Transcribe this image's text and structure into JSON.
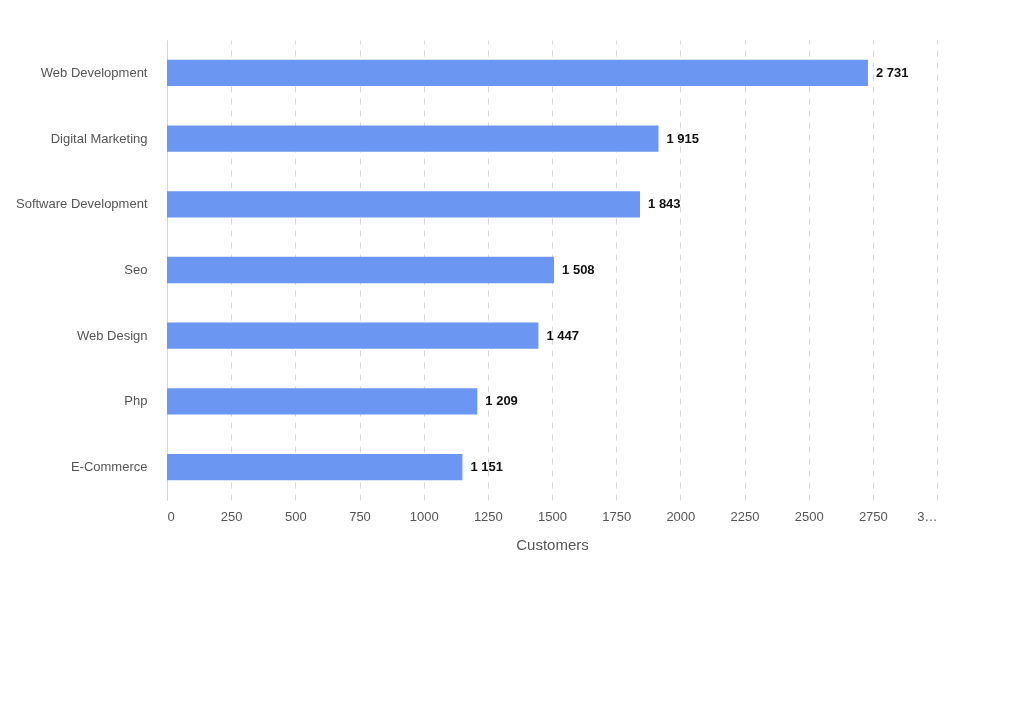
{
  "chart_data": {
    "type": "bar",
    "orientation": "horizontal",
    "xlabel": "Customers",
    "categories": [
      "Web Development",
      "Digital Marketing",
      "Software Development",
      "Seo",
      "Web Design",
      "Php",
      "E-Commerce"
    ],
    "values": [
      2731,
      1915,
      1843,
      1508,
      1447,
      1209,
      1151
    ],
    "value_labels": [
      "2 731",
      "1 915",
      "1 843",
      "1 508",
      "1 447",
      "1 209",
      "1 151"
    ],
    "color": "#6b96f2",
    "xlim": [
      0,
      3000
    ],
    "xticks": [
      0,
      250,
      500,
      750,
      1000,
      1250,
      1500,
      1750,
      2000,
      2250,
      2500,
      2750,
      {
        "value": 3000,
        "label": "3…"
      }
    ],
    "grid": "x"
  }
}
